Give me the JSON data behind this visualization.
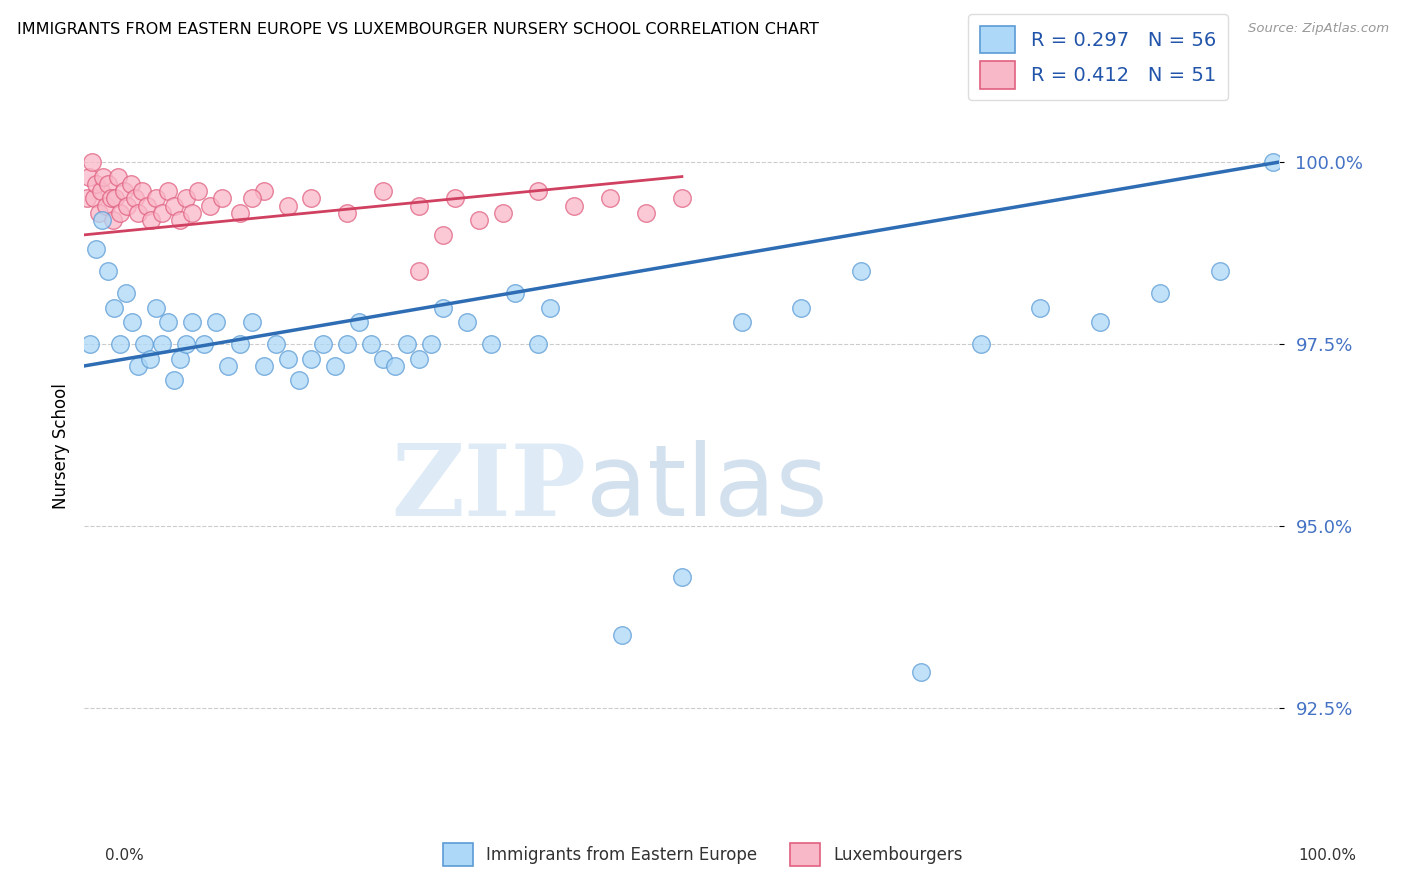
{
  "title": "IMMIGRANTS FROM EASTERN EUROPE VS LUXEMBOURGER NURSERY SCHOOL CORRELATION CHART",
  "source": "Source: ZipAtlas.com",
  "ylabel": "Nursery School",
  "legend_blue_label": "R = 0.297   N = 56",
  "legend_pink_label": "R = 0.412   N = 51",
  "legend_label_blue": "Immigrants from Eastern Europe",
  "legend_label_pink": "Luxembourgers",
  "blue_color": "#ADD8F7",
  "pink_color": "#F9B8C8",
  "blue_edge_color": "#5B9BD5",
  "pink_edge_color": "#E06080",
  "blue_line_color": "#2E6DB4",
  "pink_line_color": "#D04060",
  "ytick_labels": [
    "92.5%",
    "95.0%",
    "97.5%",
    "100.0%"
  ],
  "ytick_values": [
    92.5,
    95.0,
    97.5,
    100.0
  ],
  "xlim": [
    0.0,
    100.0
  ],
  "ylim": [
    91.2,
    101.0
  ],
  "blue_x": [
    0.5,
    1.0,
    1.5,
    2.0,
    2.5,
    3.0,
    3.5,
    4.0,
    4.5,
    5.0,
    5.5,
    6.0,
    6.5,
    7.0,
    7.5,
    8.0,
    8.5,
    9.0,
    10.0,
    11.0,
    12.0,
    13.0,
    14.0,
    15.0,
    16.0,
    17.0,
    18.0,
    19.0,
    20.0,
    21.0,
    22.0,
    23.0,
    24.0,
    25.0,
    26.0,
    27.0,
    28.0,
    29.0,
    30.0,
    32.0,
    34.0,
    36.0,
    38.0,
    39.0,
    45.0,
    50.0,
    55.0,
    60.0,
    65.0,
    70.0,
    75.0,
    80.0,
    85.0,
    90.0,
    95.0,
    99.5
  ],
  "blue_y": [
    97.5,
    98.8,
    99.2,
    98.5,
    98.0,
    97.5,
    98.2,
    97.8,
    97.2,
    97.5,
    97.3,
    98.0,
    97.5,
    97.8,
    97.0,
    97.3,
    97.5,
    97.8,
    97.5,
    97.8,
    97.2,
    97.5,
    97.8,
    97.2,
    97.5,
    97.3,
    97.0,
    97.3,
    97.5,
    97.2,
    97.5,
    97.8,
    97.5,
    97.3,
    97.2,
    97.5,
    97.3,
    97.5,
    98.0,
    97.8,
    97.5,
    98.2,
    97.5,
    98.0,
    93.5,
    94.3,
    97.8,
    98.0,
    98.5,
    93.0,
    97.5,
    98.0,
    97.8,
    98.2,
    98.5,
    100.0
  ],
  "pink_x": [
    0.2,
    0.4,
    0.6,
    0.8,
    1.0,
    1.2,
    1.4,
    1.6,
    1.8,
    2.0,
    2.2,
    2.4,
    2.6,
    2.8,
    3.0,
    3.3,
    3.6,
    3.9,
    4.2,
    4.5,
    4.8,
    5.2,
    5.6,
    6.0,
    6.5,
    7.0,
    7.5,
    8.0,
    8.5,
    9.0,
    9.5,
    10.5,
    11.5,
    13.0,
    15.0,
    17.0,
    19.0,
    22.0,
    25.0,
    28.0,
    31.0,
    35.0,
    38.0,
    41.0,
    44.0,
    47.0,
    50.0,
    28.0,
    30.0,
    33.0,
    14.0
  ],
  "pink_y": [
    99.5,
    99.8,
    100.0,
    99.5,
    99.7,
    99.3,
    99.6,
    99.8,
    99.4,
    99.7,
    99.5,
    99.2,
    99.5,
    99.8,
    99.3,
    99.6,
    99.4,
    99.7,
    99.5,
    99.3,
    99.6,
    99.4,
    99.2,
    99.5,
    99.3,
    99.6,
    99.4,
    99.2,
    99.5,
    99.3,
    99.6,
    99.4,
    99.5,
    99.3,
    99.6,
    99.4,
    99.5,
    99.3,
    99.6,
    99.4,
    99.5,
    99.3,
    99.6,
    99.4,
    99.5,
    99.3,
    99.5,
    98.5,
    99.0,
    99.2,
    99.5
  ]
}
